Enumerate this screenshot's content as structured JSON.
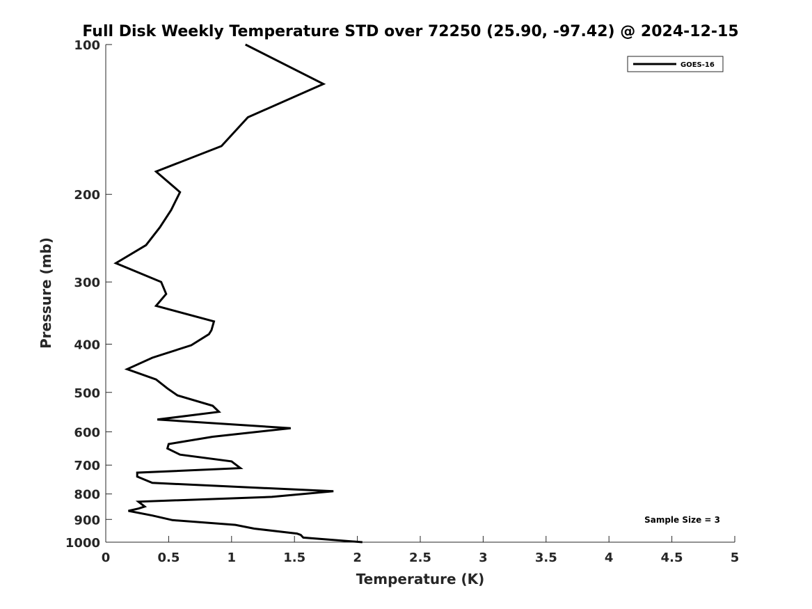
{
  "chart_data": {
    "type": "line",
    "title": "Full Disk Weekly Temperature STD over 72250 (25.90, -97.42) @ 2024-12-15",
    "xlabel": "Temperature (K)",
    "ylabel": "Pressure (mb)",
    "xlim": [
      0,
      5
    ],
    "ylim": [
      1000,
      100
    ],
    "y_scale": "log",
    "y_reversed": true,
    "x_ticks": [
      "0",
      "0.5",
      "1",
      "1.5",
      "2",
      "2.5",
      "3",
      "3.5",
      "4",
      "4.5",
      "5"
    ],
    "x_tick_values": [
      0,
      0.5,
      1,
      1.5,
      2,
      2.5,
      3,
      3.5,
      4,
      4.5,
      5
    ],
    "y_ticks": [
      "100",
      "200",
      "300",
      "400",
      "500",
      "600",
      "700",
      "800",
      "900",
      "1000"
    ],
    "y_tick_values": [
      100,
      200,
      300,
      400,
      500,
      600,
      700,
      800,
      900,
      1000
    ],
    "grid": false,
    "legend_position": "top-right",
    "annotation": "Sample Size = 3",
    "series": [
      {
        "name": "GOES-16",
        "color": "#000000",
        "points": [
          [
            1.11,
            100
          ],
          [
            1.73,
            120
          ],
          [
            1.13,
            140
          ],
          [
            0.92,
            160
          ],
          [
            0.4,
            180
          ],
          [
            0.59,
            198
          ],
          [
            0.52,
            215
          ],
          [
            0.43,
            233
          ],
          [
            0.32,
            253
          ],
          [
            0.08,
            275
          ],
          [
            0.44,
            300
          ],
          [
            0.48,
            317
          ],
          [
            0.4,
            335
          ],
          [
            0.86,
            360
          ],
          [
            0.84,
            375
          ],
          [
            0.82,
            382
          ],
          [
            0.68,
            402
          ],
          [
            0.37,
            426
          ],
          [
            0.17,
            449
          ],
          [
            0.4,
            471
          ],
          [
            0.49,
            491
          ],
          [
            0.57,
            507
          ],
          [
            0.85,
            532
          ],
          [
            0.9,
            547
          ],
          [
            0.41,
            567
          ],
          [
            1.47,
            590
          ],
          [
            0.85,
            614
          ],
          [
            0.5,
            635
          ],
          [
            0.49,
            648
          ],
          [
            0.59,
            667
          ],
          [
            1.0,
            688
          ],
          [
            1.07,
            710
          ],
          [
            0.25,
            725
          ],
          [
            0.25,
            738
          ],
          [
            0.37,
            760
          ],
          [
            1.81,
            790
          ],
          [
            1.32,
            811
          ],
          [
            0.26,
            829
          ],
          [
            0.31,
            848
          ],
          [
            0.26,
            856
          ],
          [
            0.18,
            865
          ],
          [
            0.37,
            884
          ],
          [
            0.53,
            903
          ],
          [
            1.03,
            923
          ],
          [
            1.18,
            939
          ],
          [
            1.52,
            961
          ],
          [
            1.55,
            967
          ],
          [
            1.57,
            979
          ],
          [
            2.04,
            1000
          ]
        ]
      }
    ]
  }
}
